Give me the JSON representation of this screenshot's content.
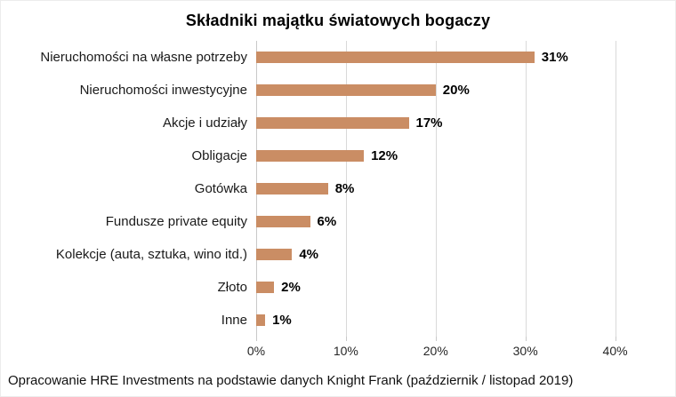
{
  "title": "Składniki majątku światowych bogaczy",
  "source_note": "Opracowanie HRE Investments na podstawie danych Knight Frank (październik / listopad 2019)",
  "chart_data": {
    "type": "bar",
    "orientation": "horizontal",
    "title": "Składniki majątku światowych bogaczy",
    "categories": [
      "Nieruchomości na własne potrzeby",
      "Nieruchomości inwestycyjne",
      "Akcje i udziały",
      "Obligacje",
      "Gotówka",
      "Fundusze private equity",
      "Kolekcje (auta, sztuka, wino itd.)",
      "Złoto",
      "Inne"
    ],
    "values": [
      31,
      20,
      17,
      12,
      8,
      6,
      4,
      2,
      1
    ],
    "value_labels": [
      "31%",
      "20%",
      "17%",
      "12%",
      "8%",
      "6%",
      "4%",
      "2%",
      "1%"
    ],
    "xlabel": "",
    "ylabel": "",
    "x_tick_values": [
      0,
      10,
      20,
      30,
      40
    ],
    "x_tick_labels": [
      "0%",
      "10%",
      "20%",
      "30%",
      "40%"
    ],
    "xlim": [
      0,
      45
    ],
    "grid": "vertical-only",
    "legend": "none",
    "bar_color": "#CA8D64",
    "gridline_color": "#D9D9D9",
    "axis_color": "#C9C9C9",
    "label_color": "#000000"
  }
}
